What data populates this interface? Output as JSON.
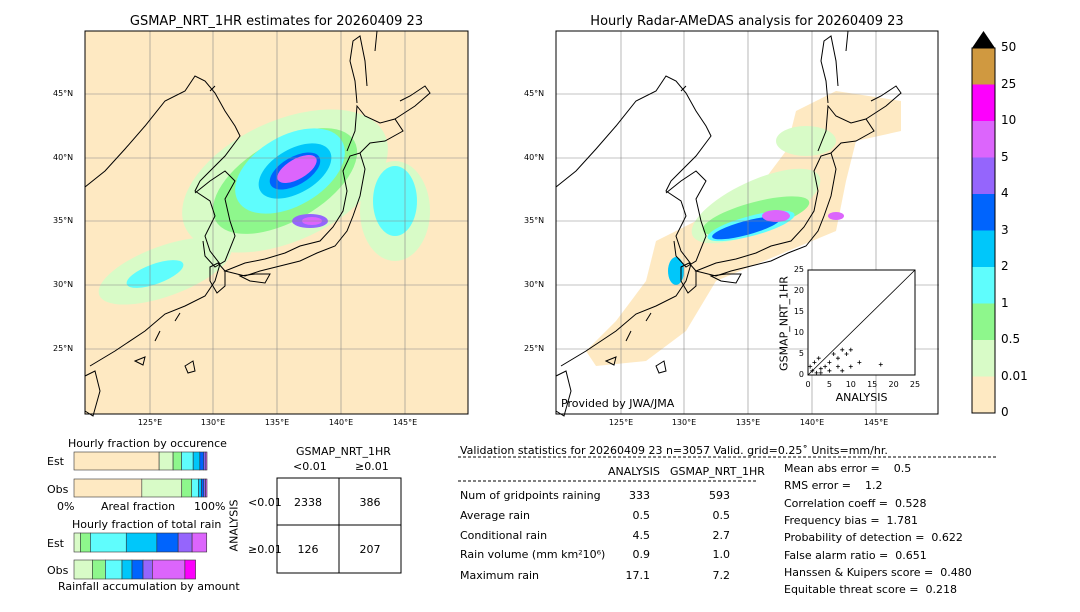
{
  "left_map": {
    "title": "GSMAP_NRT_1HR estimates for 20260409 23"
  },
  "right_map": {
    "title": "Hourly Radar-AMeDAS analysis for 20260409 23",
    "credit": "Provided by JWA/JMA"
  },
  "lon_ticks": [
    "125°E",
    "130°E",
    "135°E",
    "140°E",
    "145°E"
  ],
  "lat_ticks": [
    "45°N",
    "40°N",
    "35°N",
    "30°N",
    "25°N"
  ],
  "colorbar": {
    "labels": [
      "0",
      "0.01",
      "0.5",
      "1",
      "2",
      "3",
      "4",
      "5",
      "10",
      "25",
      "50"
    ],
    "colors": [
      "#fee9c2",
      "#d8fbc7",
      "#8ef78c",
      "#5ffdfd",
      "#00c7fa",
      "#0064fd",
      "#9565fc",
      "#dc65fc",
      "#fd00fd",
      "#d09940"
    ]
  },
  "scatter": {
    "xlabel": "ANALYSIS",
    "ylabel": "GSMAP_NRT_1HR",
    "ticks": [
      "0",
      "5",
      "10",
      "15",
      "20",
      "25"
    ]
  },
  "occurrence": {
    "title": "Hourly fraction by occurence",
    "est_label": "Est",
    "obs_label": "Obs",
    "xmin": "0%",
    "xlabel": "Areal fraction",
    "xmax": "100%",
    "est": [
      0.64,
      0.105,
      0.063,
      0.088,
      0.05,
      0.03,
      0.015,
      0.009
    ],
    "obs": [
      0.51,
      0.3,
      0.075,
      0.05,
      0.023,
      0.018,
      0.013,
      0.011
    ]
  },
  "total_rain": {
    "title": "Hourly fraction of total rain",
    "est_label": "Est",
    "obs_label": "Obs",
    "xlabel": "Rainfall accumulation by amount",
    "est": [
      0,
      0.048,
      0.075,
      0.27,
      0.23,
      0.16,
      0.105,
      0.11,
      0
    ],
    "obs": [
      0,
      0.138,
      0.098,
      0.125,
      0.075,
      0.083,
      0.07,
      0.245,
      0.08
    ]
  },
  "contingency": {
    "title": "GSMAP_NRT_1HR",
    "col1": "<0.01",
    "col2": "≥0.01",
    "ylabel": "ANALYSIS",
    "row1": "<0.01",
    "row2": "≥0.01",
    "cells": [
      "2338",
      "386",
      "126",
      "207"
    ]
  },
  "stats": {
    "header": "Validation statistics for 20260409 23  n=3057 Valid. grid=0.25˚ Units=mm/hr.",
    "col_analysis": "ANALYSIS",
    "col_gsmap": "GSMAP_NRT_1HR",
    "rows": [
      {
        "label": "Num of gridpoints raining",
        "a": "333",
        "g": "593"
      },
      {
        "label": "Average rain",
        "a": "0.5",
        "g": "0.5"
      },
      {
        "label": "Conditional rain",
        "a": "4.5",
        "g": "2.7"
      },
      {
        "label": "Rain volume (mm km²10⁶)",
        "a": "0.9",
        "g": "1.0"
      },
      {
        "label": "Maximum rain",
        "a": "17.1",
        "g": "7.2"
      }
    ],
    "scores": [
      "Mean abs error =    0.5",
      "RMS error =    1.2",
      "Correlation coeff =  0.528",
      "Frequency bias =  1.781",
      "Probability of detection =  0.622",
      "False alarm ratio =  0.651",
      "Hanssen & Kuipers score =  0.480",
      "Equitable threat score =  0.218"
    ]
  },
  "chart_data": {
    "type": "scatter",
    "xlabel": "ANALYSIS",
    "ylabel": "GSMAP_NRT_1HR",
    "xlim": [
      0,
      25
    ],
    "ylim": [
      0,
      25
    ],
    "points": [
      [
        1,
        1
      ],
      [
        2,
        0.5
      ],
      [
        3,
        1.5
      ],
      [
        4,
        2
      ],
      [
        5,
        3
      ],
      [
        6,
        5
      ],
      [
        7,
        4
      ],
      [
        8,
        6
      ],
      [
        9,
        5
      ],
      [
        10,
        6
      ],
      [
        12,
        3
      ],
      [
        17,
        2.5
      ],
      [
        0.5,
        2
      ],
      [
        1.5,
        3
      ],
      [
        2.5,
        4
      ],
      [
        3,
        0.5
      ],
      [
        5,
        1
      ],
      [
        7,
        2
      ],
      [
        8,
        1
      ],
      [
        10,
        2
      ]
    ]
  }
}
